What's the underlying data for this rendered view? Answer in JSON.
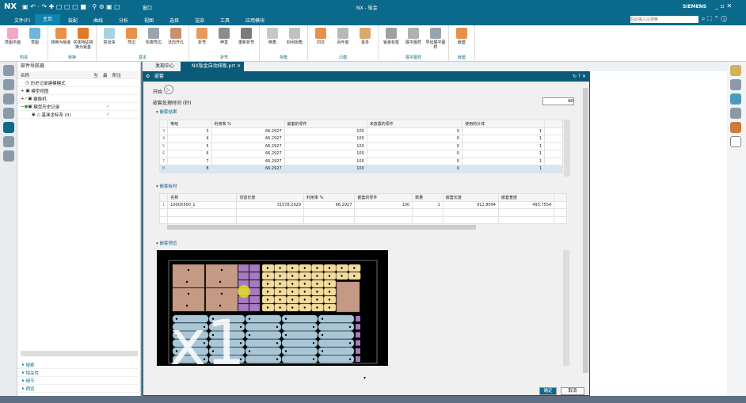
{
  "titlebar": {
    "logo": "NX",
    "title": "NX - 钣金",
    "brand": "SIEMENS",
    "window_menu": "窗口",
    "search_placeholder": "在此输入以搜索"
  },
  "menu": [
    "文件(F)",
    "主页",
    "装配",
    "曲线",
    "分析",
    "视图",
    "选择",
    "渲染",
    "工具",
    "应用模块"
  ],
  "ribbon": [
    {
      "group": "构造",
      "buttons": [
        "草图平面",
        "草图"
      ]
    },
    {
      "group": "转换",
      "buttons": [
        "转换为钣金",
        "实体特征转换为钣金"
      ]
    },
    {
      "group": "基本",
      "buttons": [
        "突出块",
        "弯边",
        "轮廓弯边",
        "法向开孔"
      ]
    },
    {
      "group": "折弯",
      "buttons": [
        "折弯",
        "伸直",
        "重新折弯"
      ]
    },
    {
      "group": "拐角",
      "buttons": [
        "倒角",
        "封闭拐角"
      ]
    },
    {
      "group": "凸模",
      "buttons": [
        "凹坑",
        "百叶窗",
        "更多"
      ]
    },
    {
      "group": "展平图样",
      "buttons": [
        "钣金标签",
        "展平图样",
        "导出展平图样"
      ]
    },
    {
      "group": "嵌套",
      "buttons": [
        "嵌套"
      ]
    }
  ],
  "navigator": {
    "title": "部件导航器",
    "columns": [
      "名称",
      "当",
      "最",
      "附注"
    ],
    "items": [
      "历史记录建模模式",
      "模型视图",
      "摄像机",
      "模型历史记录",
      "基准坐标系 (0)"
    ],
    "panels": [
      "搜索",
      "相关性",
      "细节",
      "预览"
    ]
  },
  "tabs": [
    {
      "label": "发现中心"
    },
    {
      "label": "NX钣金自动排板.prt"
    }
  ],
  "dialog": {
    "title": "嵌套",
    "start_label": "开始",
    "time_label": "嵌套处理时间 (秒)",
    "time_value": "60",
    "results": {
      "title": "嵌套结果",
      "columns": [
        "等级",
        "利用率 %",
        "嵌套的零件",
        "未放置的零件",
        "使用的片体"
      ],
      "rows": [
        [
          "3",
          "3",
          "66.2927",
          "100",
          "0",
          "1"
        ],
        [
          "4",
          "4",
          "66.2927",
          "100",
          "0",
          "1"
        ],
        [
          "5",
          "5",
          "66.2927",
          "100",
          "0",
          "1"
        ],
        [
          "6",
          "6",
          "66.2927",
          "100",
          "0",
          "1"
        ],
        [
          "7",
          "7",
          "66.2927",
          "100",
          "0",
          "1"
        ],
        [
          "8",
          "8",
          "66.2927",
          "100",
          "0",
          "1"
        ]
      ]
    },
    "sheets": {
      "title": "嵌套板材",
      "columns": [
        "名称",
        "切割长度",
        "利用率 %",
        "嵌套的零件",
        "数量",
        "嵌套长度",
        "嵌套宽度"
      ],
      "rows": [
        [
          "1",
          "1000X500_1",
          "31578.2929",
          "66.2927",
          "100",
          "1",
          "912.8094",
          "493.7554"
        ]
      ]
    },
    "preview": {
      "title": "嵌套预览",
      "watermark": "x1"
    },
    "ok": "确定",
    "cancel": "取消"
  },
  "colors": {
    "teal": "#0b6a8c",
    "part_brown": "#c49a84",
    "part_purple": "#a77bc0",
    "part_yellow": "#f3dca0",
    "part_blue": "#a9c6d6"
  }
}
